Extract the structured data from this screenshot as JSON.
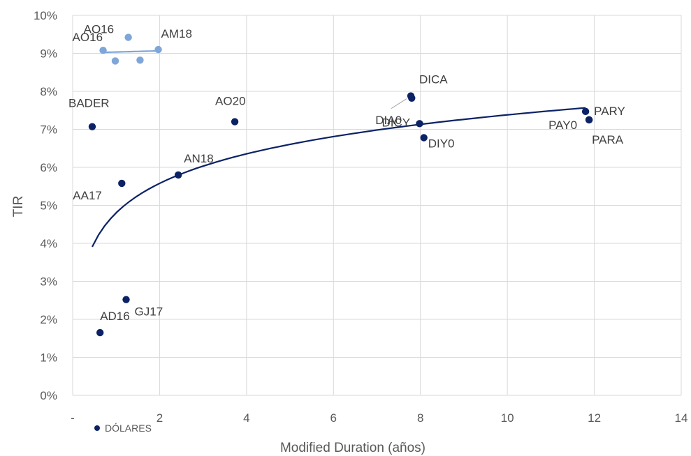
{
  "chart_data": {
    "type": "scatter",
    "title": "",
    "xlabel": "Modified Duration (años)",
    "ylabel": "TIR",
    "xlim": [
      0,
      14
    ],
    "ylim": [
      0,
      10
    ],
    "x_ticks": [
      "-",
      "2",
      "4",
      "6",
      "8",
      "10",
      "12",
      "14"
    ],
    "y_ticks": [
      "0%",
      "1%",
      "2%",
      "3%",
      "4%",
      "5%",
      "6%",
      "7%",
      "8%",
      "9%",
      "10%"
    ],
    "grid": "on",
    "legend_position": "bottom-left",
    "series": [
      {
        "name": "DÓLARES",
        "color": "#0b2265",
        "points": [
          {
            "label": "BADER",
            "x": 0.45,
            "y": 7.07
          },
          {
            "label": "AD16",
            "x": 0.63,
            "y": 1.65
          },
          {
            "label": "AA17",
            "x": 1.13,
            "y": 5.58
          },
          {
            "label": "GJ17",
            "x": 1.23,
            "y": 2.52
          },
          {
            "label": "AN18",
            "x": 2.43,
            "y": 5.8
          },
          {
            "label": "AO20",
            "x": 3.73,
            "y": 7.2
          },
          {
            "label": "DICA",
            "x": 7.78,
            "y": 7.88
          },
          {
            "label": "DIA0",
            "x": 7.8,
            "y": 7.82
          },
          {
            "label": "DICY",
            "x": 7.98,
            "y": 7.15
          },
          {
            "label": "DIY0",
            "x": 8.08,
            "y": 6.78
          },
          {
            "label": "PARY",
            "x": 11.8,
            "y": 7.47
          },
          {
            "label": "PAY0",
            "x": 11.88,
            "y": 7.25
          },
          {
            "label": "PARA",
            "x": 11.88,
            "y": 7.25
          }
        ]
      },
      {
        "name": "",
        "color": "#7ea6d8",
        "points": [
          {
            "label": "AO16",
            "x": 0.7,
            "y": 9.08
          },
          {
            "label": "AO16",
            "x": 1.28,
            "y": 9.42
          },
          {
            "label": "",
            "x": 0.98,
            "y": 8.8
          },
          {
            "label": "",
            "x": 1.55,
            "y": 8.82
          },
          {
            "label": "AM18",
            "x": 1.97,
            "y": 9.1
          }
        ]
      }
    ],
    "trendlines": [
      {
        "type": "logarithmic",
        "series": "DÓLARES",
        "color": "#0b2265",
        "x_range": [
          0.45,
          11.8
        ]
      },
      {
        "type": "linear",
        "series": "",
        "color": "#7ea6d8",
        "x_range": [
          0.7,
          1.97
        ]
      }
    ]
  }
}
